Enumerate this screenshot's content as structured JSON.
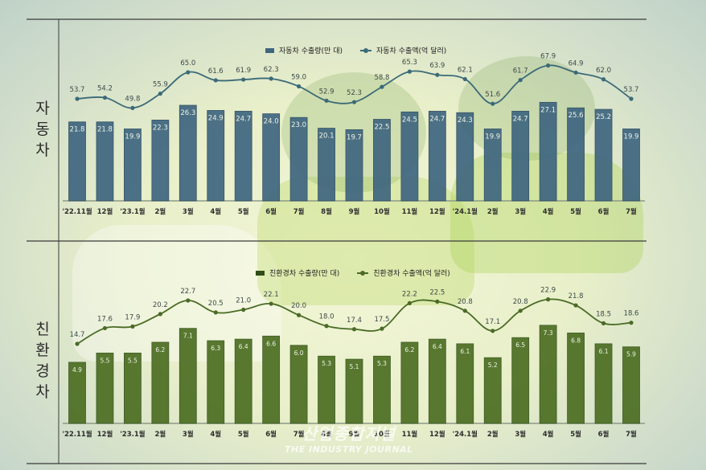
{
  "sections": {
    "top_label": "자동차",
    "bottom_label": "친환경차"
  },
  "legends": {
    "top_bar": "자동차 수출량(만 대)",
    "top_line": "자동차 수출액(억 달러)",
    "bottom_bar": "친환경차 수출량(만 대)",
    "bottom_line": "친환경차 수출액(억 달러)"
  },
  "watermark": {
    "korean": "산업종합저널",
    "english": "THE INDUSTRY JOURNAL"
  },
  "colors": {
    "top_bar": "#3f6680",
    "top_line": "#3c6a78",
    "bottom_bar": "#4c6e22",
    "bottom_line": "#4a6b25",
    "axis": "#3a3a3a"
  },
  "chart_data": [
    {
      "type": "bar+line",
      "title": "자동차",
      "categories": [
        "'22.11월",
        "12월",
        "'23.1월",
        "2월",
        "3월",
        "4월",
        "5월",
        "6월",
        "7월",
        "8월",
        "9월",
        "10월",
        "11월",
        "12월",
        "'24.1월",
        "2월",
        "3월",
        "4월",
        "5월",
        "6월",
        "7월"
      ],
      "series": [
        {
          "name": "자동차 수출량(만 대)",
          "type": "bar",
          "values": [
            21.8,
            21.8,
            19.9,
            22.3,
            26.3,
            24.9,
            24.7,
            24.0,
            23.0,
            20.1,
            19.7,
            22.5,
            24.5,
            24.7,
            24.3,
            19.9,
            24.7,
            27.1,
            25.6,
            25.2,
            19.9
          ]
        },
        {
          "name": "자동차 수출액(억 달러)",
          "type": "line",
          "values": [
            53.7,
            54.2,
            49.8,
            55.9,
            65.0,
            61.6,
            61.9,
            62.3,
            59.0,
            52.9,
            52.3,
            58.8,
            65.3,
            63.9,
            62.1,
            51.6,
            61.7,
            67.9,
            64.9,
            62.0,
            53.7
          ]
        }
      ],
      "legend_position": "top-right",
      "grid": false
    },
    {
      "type": "bar+line",
      "title": "친환경차",
      "categories": [
        "'22.11월",
        "12월",
        "'23.1월",
        "2월",
        "3월",
        "4월",
        "5월",
        "6월",
        "7월",
        "8월",
        "9월",
        "10월",
        "11월",
        "12월",
        "'24.1월",
        "2월",
        "3월",
        "4월",
        "5월",
        "6월",
        "7월"
      ],
      "series": [
        {
          "name": "친환경차 수출량(만 대)",
          "type": "bar",
          "values": [
            4.9,
            5.5,
            5.5,
            6.2,
            7.1,
            6.3,
            6.4,
            6.6,
            6.0,
            5.3,
            5.1,
            5.3,
            6.2,
            6.4,
            6.1,
            5.2,
            6.5,
            7.3,
            6.8,
            6.1,
            5.9
          ]
        },
        {
          "name": "친환경차 수출액(억 달러)",
          "type": "line",
          "values": [
            14.7,
            17.6,
            17.9,
            20.2,
            22.7,
            20.5,
            21.0,
            22.1,
            20.0,
            18.0,
            17.4,
            17.5,
            22.2,
            22.5,
            20.8,
            17.1,
            20.8,
            22.9,
            21.8,
            18.5,
            18.6
          ]
        }
      ],
      "legend_position": "top-right",
      "grid": false
    }
  ]
}
